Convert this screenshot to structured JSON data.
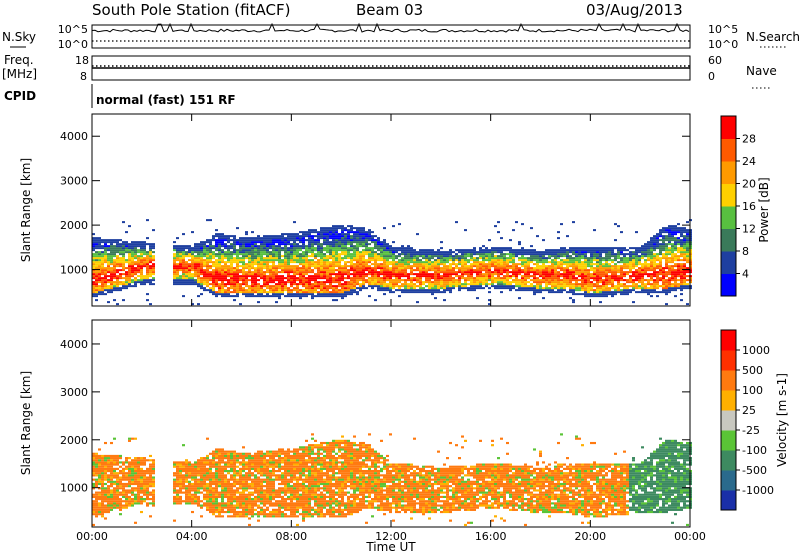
{
  "header": {
    "station": "South Pole Station (fitACF)",
    "beam": "Beam 03",
    "date": "03/Aug/2013"
  },
  "top_panel": {
    "left_label": "N.Sky",
    "left_ticks": [
      "10^5",
      "10^0"
    ],
    "right_ticks": [
      "10^5",
      "10^0"
    ],
    "right_label": "N.Search"
  },
  "freq_panel": {
    "label_line1": "Freq.",
    "label_line2": "[MHz]",
    "left_ticks": [
      "18",
      "8"
    ],
    "right_ticks": [
      "60",
      "0"
    ],
    "right_label": "Nave"
  },
  "cpid": {
    "label": "CPID",
    "text": "normal (fast) 151 RF"
  },
  "colors": {
    "power_scale": [
      "#0000ff",
      "#1e3fa0",
      "#3a7a5a",
      "#58c040",
      "#ffd000",
      "#ff9a00",
      "#ff5a00",
      "#ff0000"
    ],
    "velocity_scale": [
      "#1a2fa8",
      "#2a6a8c",
      "#3d8a60",
      "#5ac436",
      "#c8c8c0",
      "#ffb000",
      "#ff7a10",
      "#ff3000",
      "#ff0000"
    ]
  },
  "chart_data": [
    {
      "type": "heatmap",
      "title": "Power",
      "ylabel": "Slant Range [km]",
      "xlabel": "Time UT",
      "ylim": [
        180,
        4500
      ],
      "y_ticks": [
        "4000",
        "3000",
        "2000",
        "1000"
      ],
      "x_ticks": [
        "00:00",
        "04:00",
        "08:00",
        "12:00",
        "16:00",
        "20:00",
        "00:00"
      ],
      "colorbar": {
        "label": "Power [dB]",
        "ticks": [
          "28",
          "24",
          "20",
          "16",
          "12",
          "8",
          "4"
        ]
      }
    },
    {
      "type": "heatmap",
      "title": "Velocity",
      "ylabel": "Slant Range [km]",
      "xlabel": "Time UT",
      "ylim": [
        180,
        4500
      ],
      "y_ticks": [
        "4000",
        "3000",
        "2000",
        "1000"
      ],
      "x_ticks": [
        "00:00",
        "04:00",
        "08:00",
        "12:00",
        "16:00",
        "20:00",
        "00:00"
      ],
      "colorbar": {
        "label": "Velocity [m s-1]",
        "ticks": [
          "1000",
          "500",
          "100",
          "25",
          "-25",
          "-100",
          "-500",
          "-1000"
        ]
      }
    }
  ]
}
